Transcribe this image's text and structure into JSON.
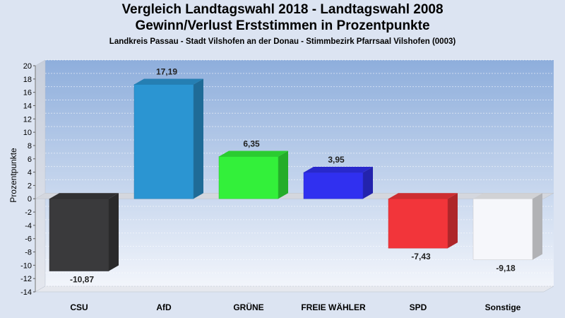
{
  "chart_data": {
    "type": "bar",
    "title": "Vergleich Landtagswahl 2018 - Landtagswahl 2008",
    "subtitle": "Gewinn/Verlust Erststimmen in Prozentpunkte",
    "caption": "Landkreis Passau - Stadt Vilshofen an der Donau - Stimmbezirk Pfarrsaal Vilshofen (0003)",
    "xlabel": "",
    "ylabel": "Prozentpunkte",
    "ylim": [
      -14,
      20
    ],
    "yticks": [
      20,
      18,
      16,
      14,
      12,
      10,
      8,
      6,
      4,
      2,
      0,
      -2,
      -4,
      -6,
      -8,
      -10,
      -12,
      -14
    ],
    "categories": [
      "CSU",
      "AfD",
      "GRÜNE",
      "FREIE WÄHLER",
      "SPD",
      "Sonstige"
    ],
    "values": [
      -10.87,
      17.19,
      6.35,
      3.95,
      -7.43,
      -9.18
    ],
    "value_labels": [
      "-10,87",
      "17,19",
      "6,35",
      "3,95",
      "-7,43",
      "-9,18"
    ],
    "colors": [
      "#3a3a3c",
      "#2b95d2",
      "#33f03a",
      "#3030f0",
      "#f2353a",
      "#f6f7fb"
    ],
    "grid": true,
    "legend": "none"
  }
}
